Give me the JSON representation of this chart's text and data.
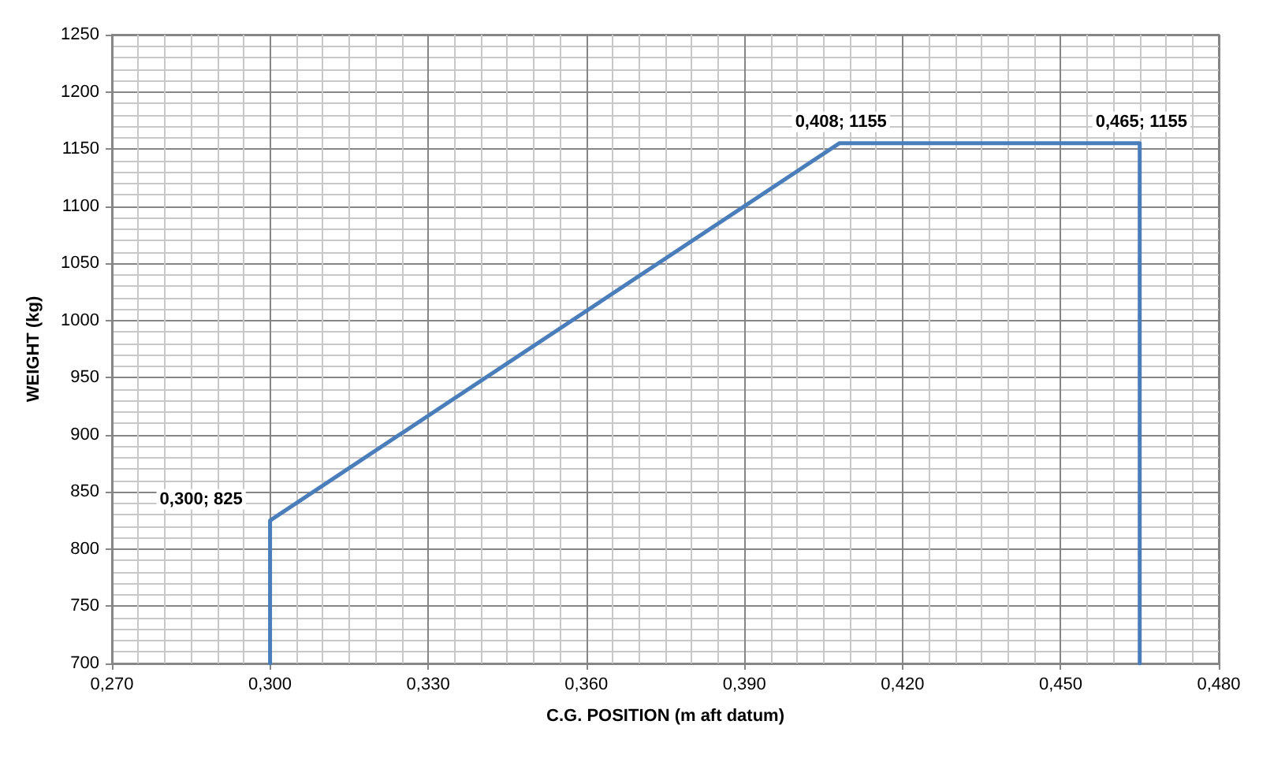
{
  "chart_data": {
    "type": "line",
    "xlabel": "C.G. POSITION (m aft datum)",
    "ylabel": "WEIGHT (kg)",
    "x": [
      0.3,
      0.3,
      0.408,
      0.465,
      0.465
    ],
    "series": [
      {
        "color": "#4a7ebb",
        "values": [
          700,
          825,
          1155,
          1155,
          700
        ],
        "value_labels": [
          null,
          "0,300; 825",
          "0,408; 1155",
          "0,465; 1155",
          null
        ]
      }
    ],
    "xlim": [
      0.27,
      0.48
    ],
    "xticks": [
      {
        "value": 0.27,
        "label": "0,270"
      },
      {
        "value": 0.3,
        "label": "0,300"
      },
      {
        "value": 0.33,
        "label": "0,330"
      },
      {
        "value": 0.36,
        "label": "0,360"
      },
      {
        "value": 0.39,
        "label": "0,390"
      },
      {
        "value": 0.42,
        "label": "0,420"
      },
      {
        "value": 0.45,
        "label": "0,450"
      },
      {
        "value": 0.48,
        "label": "0,480"
      }
    ],
    "ylim": [
      700,
      1250
    ],
    "yticks": [
      700,
      750,
      800,
      850,
      900,
      950,
      1000,
      1050,
      1100,
      1150,
      1200,
      1250
    ],
    "grid": true,
    "marker": "none",
    "line_style": "solid"
  }
}
